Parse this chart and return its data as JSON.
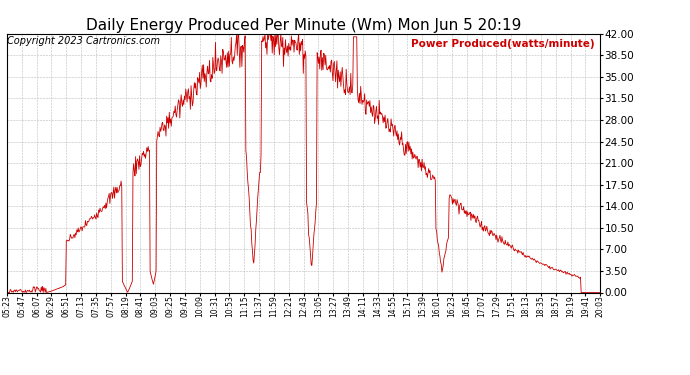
{
  "title": "Daily Energy Produced Per Minute (Wm) Mon Jun 5 20:19",
  "copyright_text": "Copyright 2023 Cartronics.com",
  "legend_label": "Power Produced(watts/minute)",
  "y_min": 0.0,
  "y_max": 42.0,
  "y_ticks": [
    0.0,
    3.5,
    7.0,
    10.5,
    14.0,
    17.5,
    21.0,
    24.5,
    28.0,
    31.5,
    35.0,
    38.5,
    42.0
  ],
  "line_color": "#cc0000",
  "legend_color": "#cc0000",
  "background_color": "#ffffff",
  "grid_color": "#aaaaaa",
  "title_fontsize": 11,
  "copyright_fontsize": 7,
  "ylabel_fontsize": 8,
  "x_tick_fontsize": 5.5,
  "y_tick_fontsize": 7.5,
  "x_tick_labels": [
    "05:23",
    "05:47",
    "06:07",
    "06:29",
    "06:51",
    "07:13",
    "07:35",
    "07:57",
    "08:19",
    "08:41",
    "09:03",
    "09:25",
    "09:47",
    "10:09",
    "10:31",
    "10:53",
    "11:15",
    "11:37",
    "11:59",
    "12:21",
    "12:43",
    "13:05",
    "13:27",
    "13:49",
    "14:11",
    "14:33",
    "14:55",
    "15:17",
    "15:39",
    "16:01",
    "16:23",
    "16:45",
    "17:07",
    "17:29",
    "17:51",
    "18:13",
    "18:35",
    "18:57",
    "19:19",
    "19:41",
    "20:03"
  ],
  "peak_time": 395,
  "sigma": 200,
  "peak_value": 41.0,
  "total_minutes": 900,
  "n_points": 900,
  "sunrise_min": 60,
  "sunset_min": 870
}
